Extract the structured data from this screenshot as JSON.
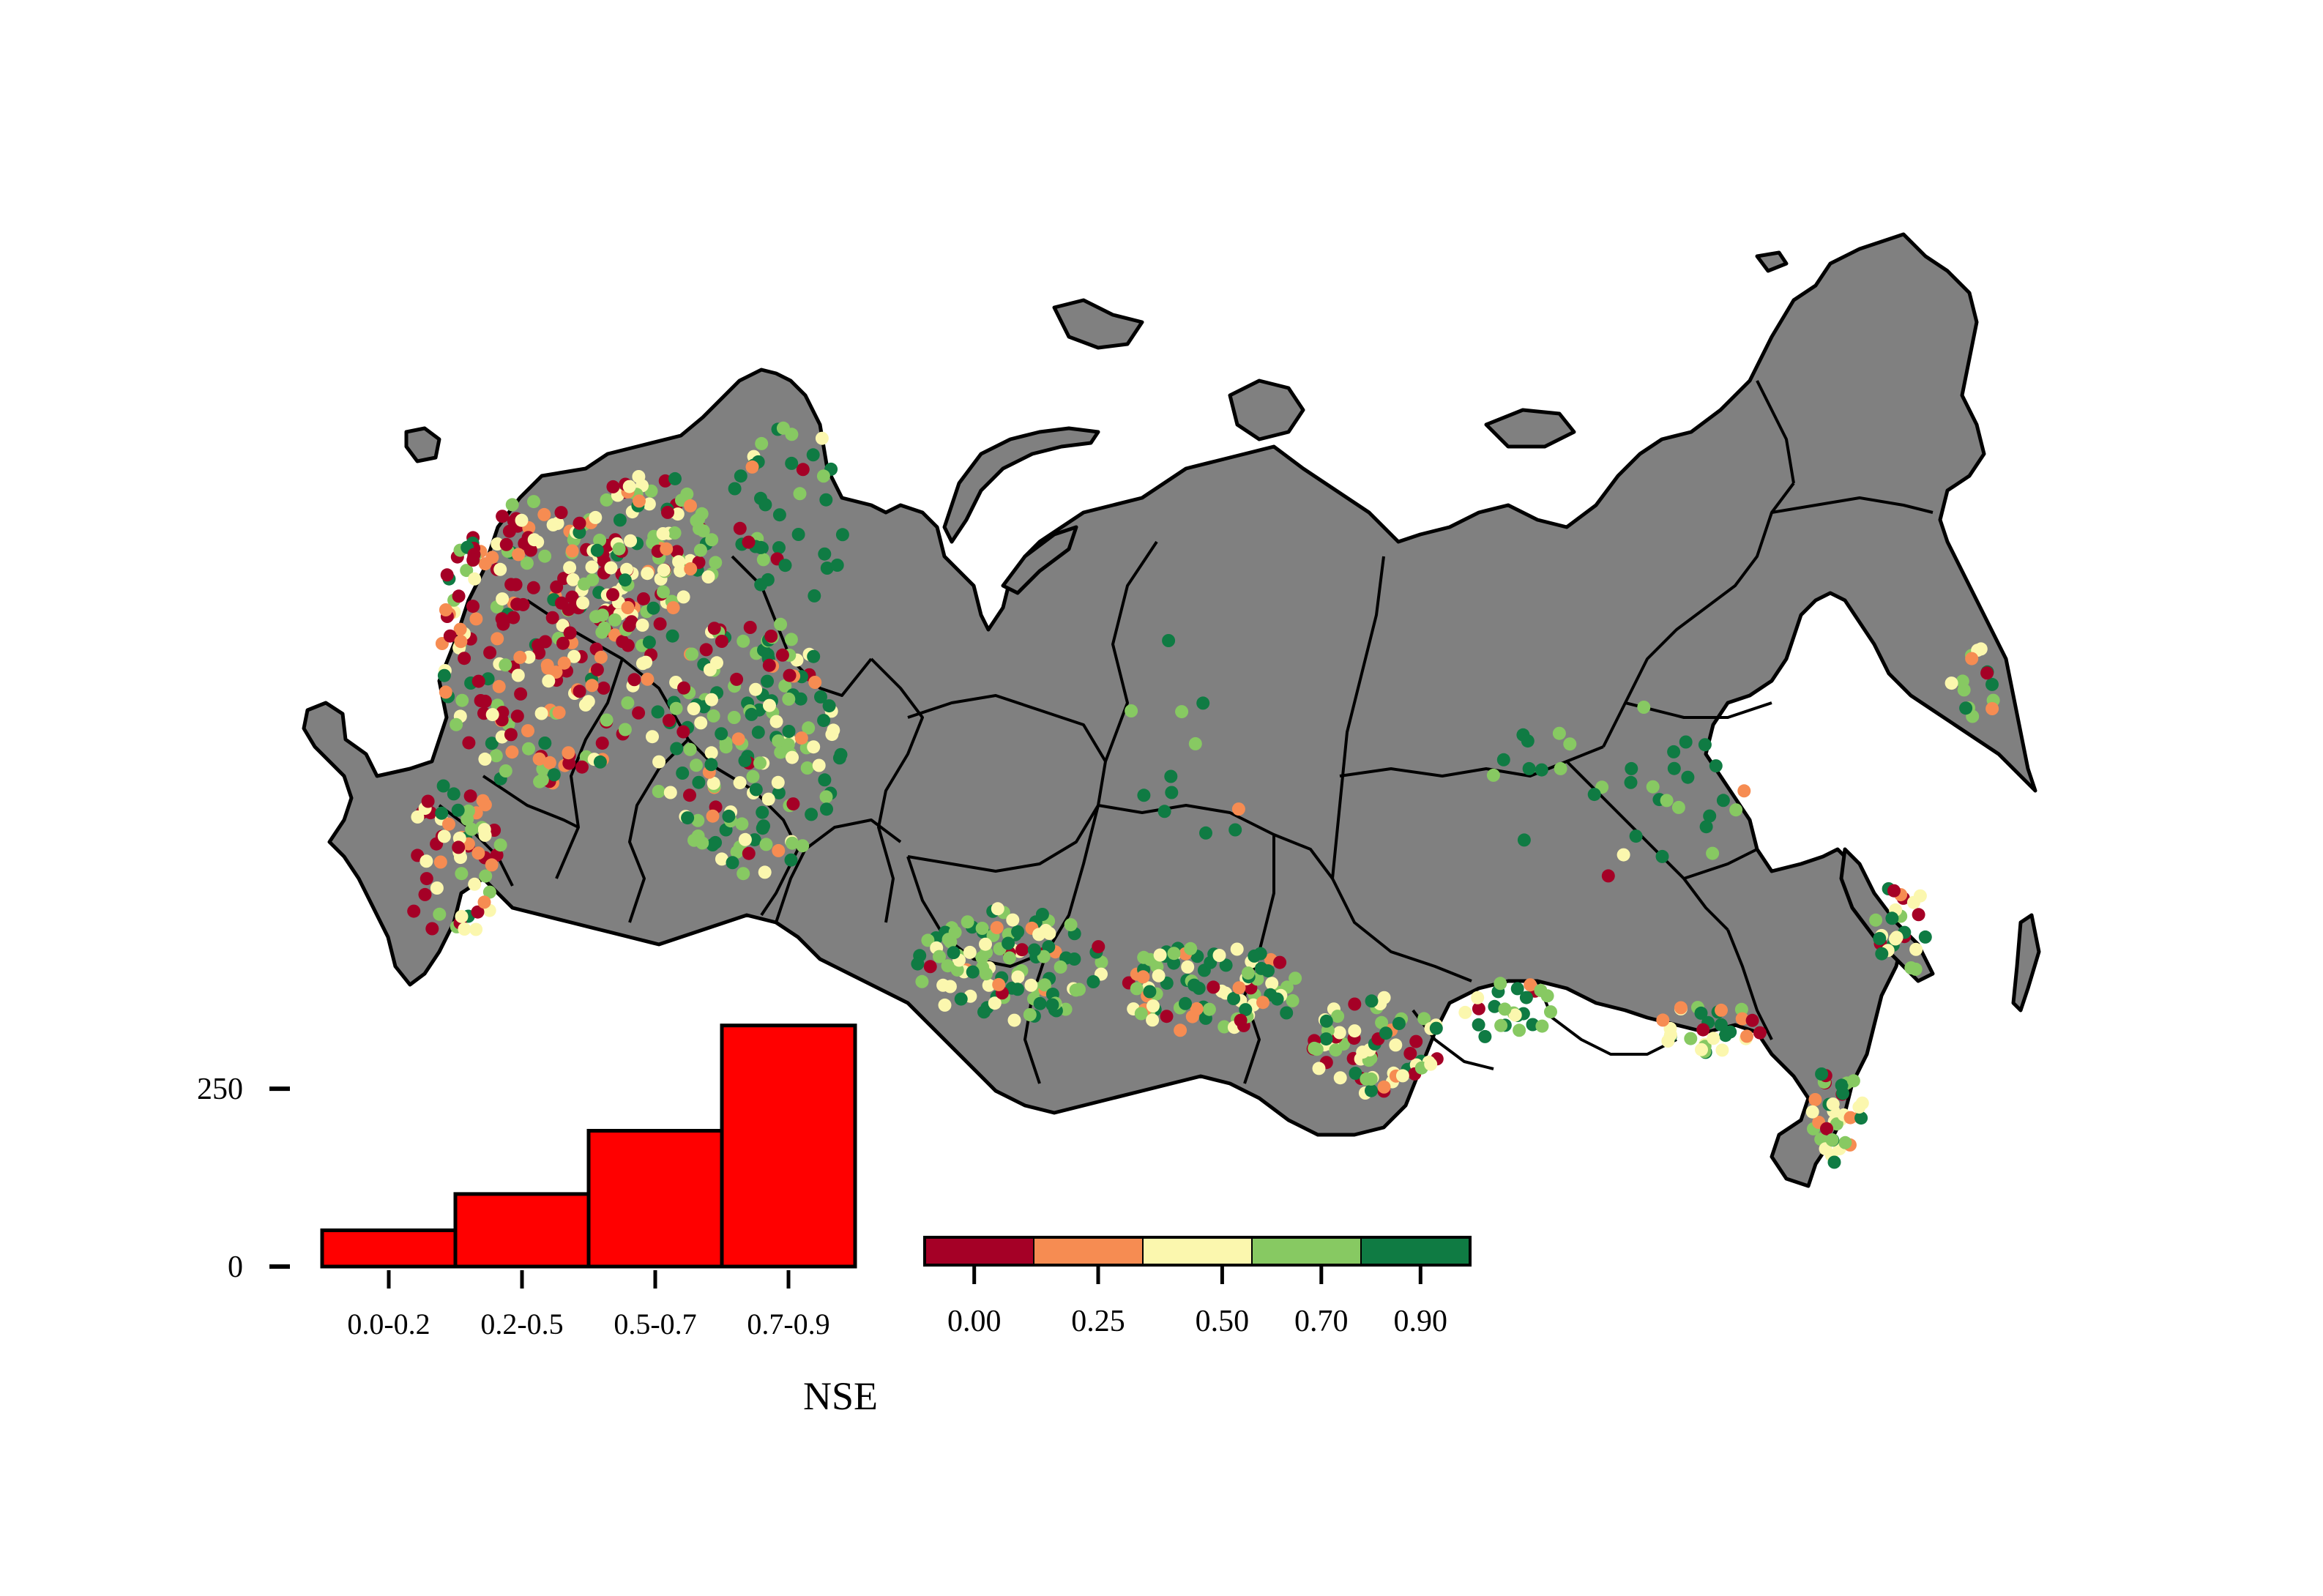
{
  "map": {
    "land_color": "#808080",
    "border_color": "#000000",
    "ocean_color": "#ffffff"
  },
  "histogram": {
    "type": "bar",
    "bar_color": "#ff0000",
    "categories": [
      "0.0-0.2",
      "0.2-0.5",
      "0.5-0.7",
      "0.7-0.9"
    ],
    "values": [
      51,
      102,
      191,
      339
    ],
    "y_ticks": [
      "0",
      "250"
    ],
    "y_tick_values": [
      0,
      250
    ],
    "ylim": [
      0,
      350
    ],
    "xlabel": "NSE"
  },
  "colorbar": {
    "segment_colors": [
      "#a50026",
      "#f68c52",
      "#fbf7ae",
      "#87c962",
      "#0f7b43"
    ],
    "tick_labels": [
      "0.00",
      "0.25",
      "0.50",
      "0.70",
      "0.90"
    ],
    "tick_values": [
      0.0,
      0.25,
      0.5,
      0.7,
      0.9
    ],
    "range": [
      -0.1,
      1.0
    ]
  },
  "stations": {
    "class_colors": [
      "#a50026",
      "#f68c52",
      "#fbf7ae",
      "#87c962",
      "#0f7b43"
    ]
  }
}
